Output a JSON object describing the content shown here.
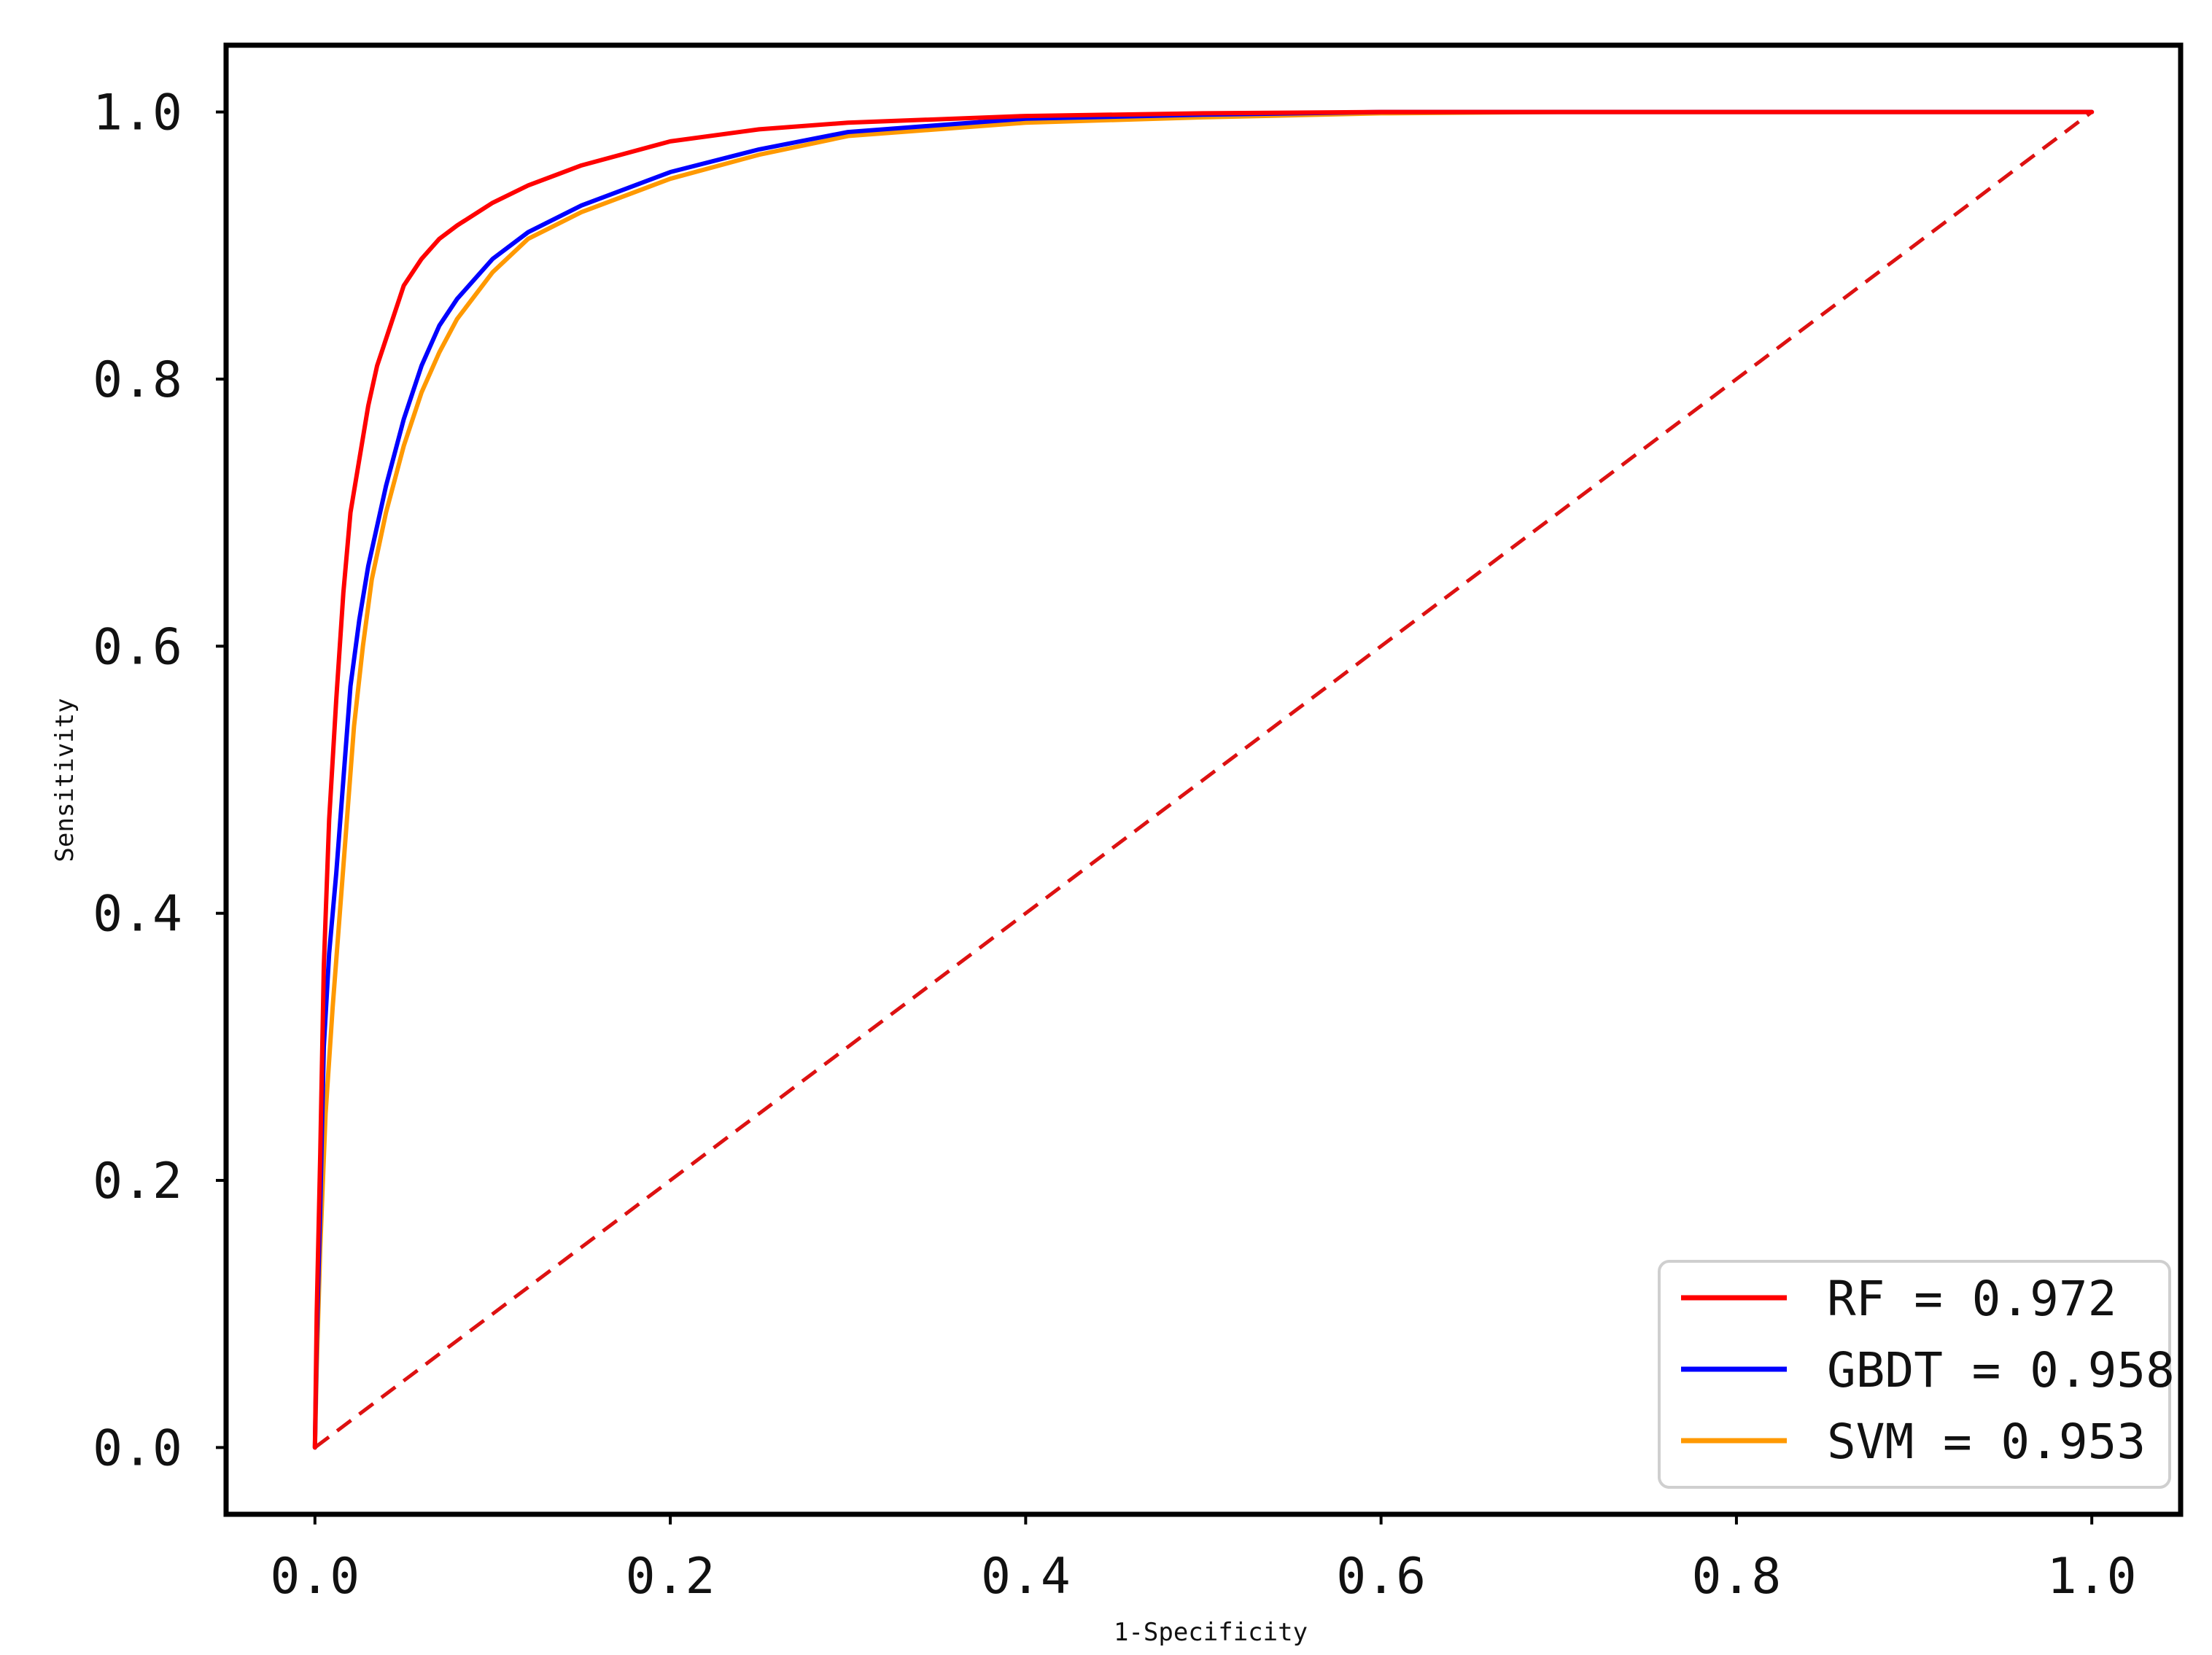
{
  "chart_data": {
    "type": "line",
    "title": "",
    "xlabel": "1-Specificity",
    "ylabel": "Sensitivity",
    "xlim": [
      -0.05,
      1.05
    ],
    "ylim": [
      -0.05,
      1.05
    ],
    "x_ticks": [
      "0.0",
      "0.2",
      "0.4",
      "0.6",
      "0.8",
      "1.0"
    ],
    "y_ticks": [
      "0.0",
      "0.2",
      "0.4",
      "0.6",
      "0.8",
      "1.0"
    ],
    "grid": false,
    "legend_position": "lower-right",
    "series": [
      {
        "name": "RF = 0.972",
        "color": "#ff0000",
        "x": [
          0,
          0.001,
          0.003,
          0.005,
          0.008,
          0.012,
          0.016,
          0.02,
          0.025,
          0.03,
          0.035,
          0.04,
          0.05,
          0.06,
          0.07,
          0.08,
          0.1,
          0.12,
          0.15,
          0.2,
          0.25,
          0.3,
          0.4,
          0.5,
          0.6,
          0.7,
          0.8,
          0.9,
          1.0
        ],
        "y": [
          0,
          0.1,
          0.22,
          0.36,
          0.47,
          0.56,
          0.64,
          0.7,
          0.74,
          0.78,
          0.81,
          0.83,
          0.87,
          0.89,
          0.905,
          0.915,
          0.932,
          0.945,
          0.96,
          0.978,
          0.987,
          0.992,
          0.997,
          0.999,
          1.0,
          1.0,
          1.0,
          1.0,
          1.0
        ]
      },
      {
        "name": "GBDT = 0.958",
        "color": "#0000ff",
        "x": [
          0,
          0.001,
          0.003,
          0.005,
          0.008,
          0.012,
          0.016,
          0.02,
          0.025,
          0.03,
          0.04,
          0.05,
          0.06,
          0.07,
          0.08,
          0.1,
          0.12,
          0.15,
          0.2,
          0.25,
          0.3,
          0.4,
          0.5,
          0.6,
          0.7,
          0.8,
          0.9,
          1.0
        ],
        "y": [
          0,
          0.08,
          0.18,
          0.3,
          0.37,
          0.43,
          0.5,
          0.57,
          0.62,
          0.66,
          0.72,
          0.77,
          0.81,
          0.84,
          0.86,
          0.89,
          0.91,
          0.93,
          0.955,
          0.972,
          0.985,
          0.995,
          0.998,
          1.0,
          1.0,
          1.0,
          1.0,
          1.0
        ]
      },
      {
        "name": "SVM = 0.953",
        "color": "#ff9900",
        "x": [
          0,
          0.001,
          0.003,
          0.006,
          0.01,
          0.014,
          0.018,
          0.022,
          0.027,
          0.032,
          0.04,
          0.05,
          0.06,
          0.07,
          0.08,
          0.1,
          0.12,
          0.15,
          0.2,
          0.25,
          0.3,
          0.4,
          0.5,
          0.6,
          0.7,
          0.8,
          0.9,
          1.0
        ],
        "y": [
          0,
          0.06,
          0.15,
          0.25,
          0.33,
          0.4,
          0.47,
          0.54,
          0.6,
          0.65,
          0.7,
          0.75,
          0.79,
          0.82,
          0.845,
          0.88,
          0.905,
          0.925,
          0.95,
          0.968,
          0.982,
          0.992,
          0.996,
          0.999,
          1.0,
          1.0,
          1.0,
          1.0
        ]
      }
    ],
    "reference_line": {
      "color": "#dd1111",
      "x": [
        0,
        1
      ],
      "y": [
        0,
        1
      ]
    }
  }
}
